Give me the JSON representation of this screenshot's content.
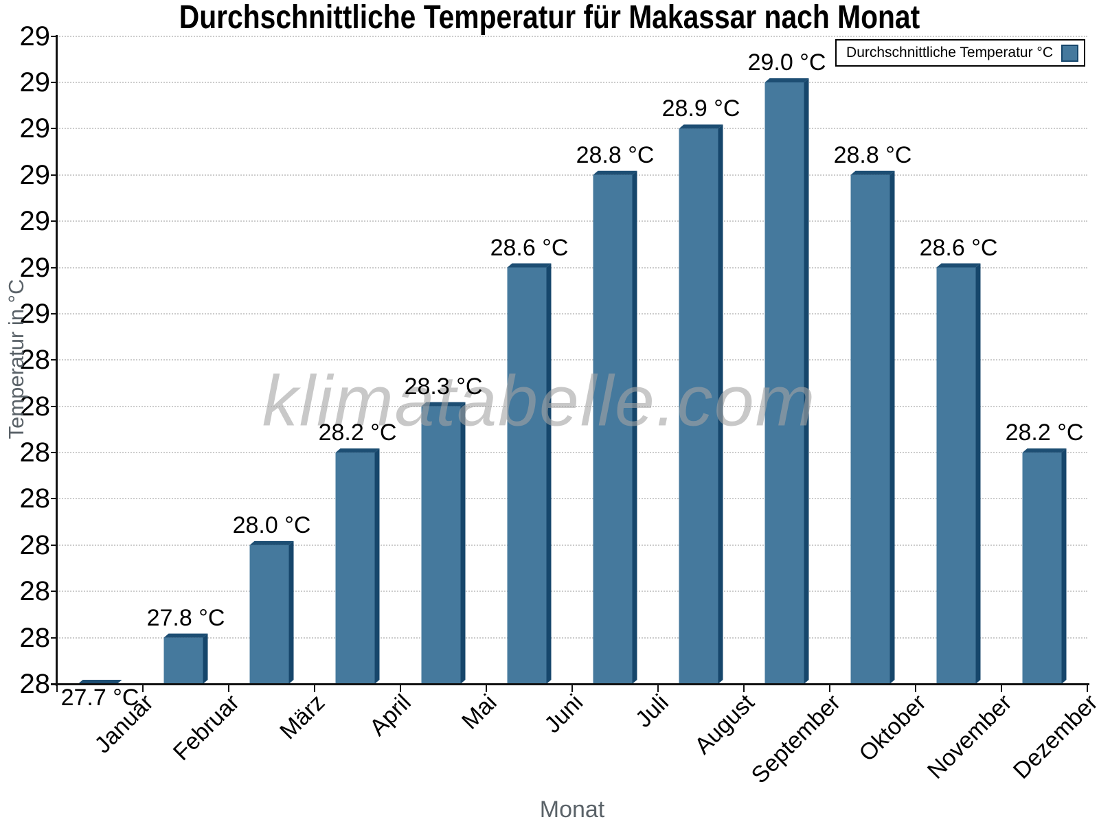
{
  "title": "Durchschnittliche Temperatur für Makassar nach Monat",
  "watermark": "klimatabelle.com",
  "legend": {
    "label": "Durchschnittliche Temperatur °C"
  },
  "chart_data": {
    "type": "bar",
    "title": "Durchschnittliche Temperatur für Makassar nach Monat",
    "xlabel": "Monat",
    "ylabel": "Temperatur in °C",
    "categories": [
      "Januar",
      "Februar",
      "März",
      "April",
      "Mai",
      "Juni",
      "Juli",
      "August",
      "September",
      "Oktober",
      "November",
      "Dezember"
    ],
    "values": [
      27.7,
      27.8,
      28.0,
      28.2,
      28.3,
      28.6,
      28.8,
      28.9,
      29.0,
      28.8,
      28.6,
      28.2
    ],
    "data_label_suffix": " °C",
    "series_name": "Durchschnittliche Temperatur °C",
    "ylim": [
      27.7,
      29.1
    ],
    "ytick_step": 0.1,
    "ytick_label_style": "rounded-to-integer",
    "grid": "horizontal-dotted",
    "legend_position": "top-right",
    "bar_style": "pseudo-3d",
    "colors": {
      "bar_front": "#45799d",
      "bar_side": "#16466b",
      "bar_top": "#1d4e73",
      "grid": "#cccccc",
      "axis": "#111111",
      "axis_title": "#5a6268",
      "tick_label": "#000000",
      "watermark": "#c9c9c9",
      "legend_border": "#000000"
    }
  }
}
